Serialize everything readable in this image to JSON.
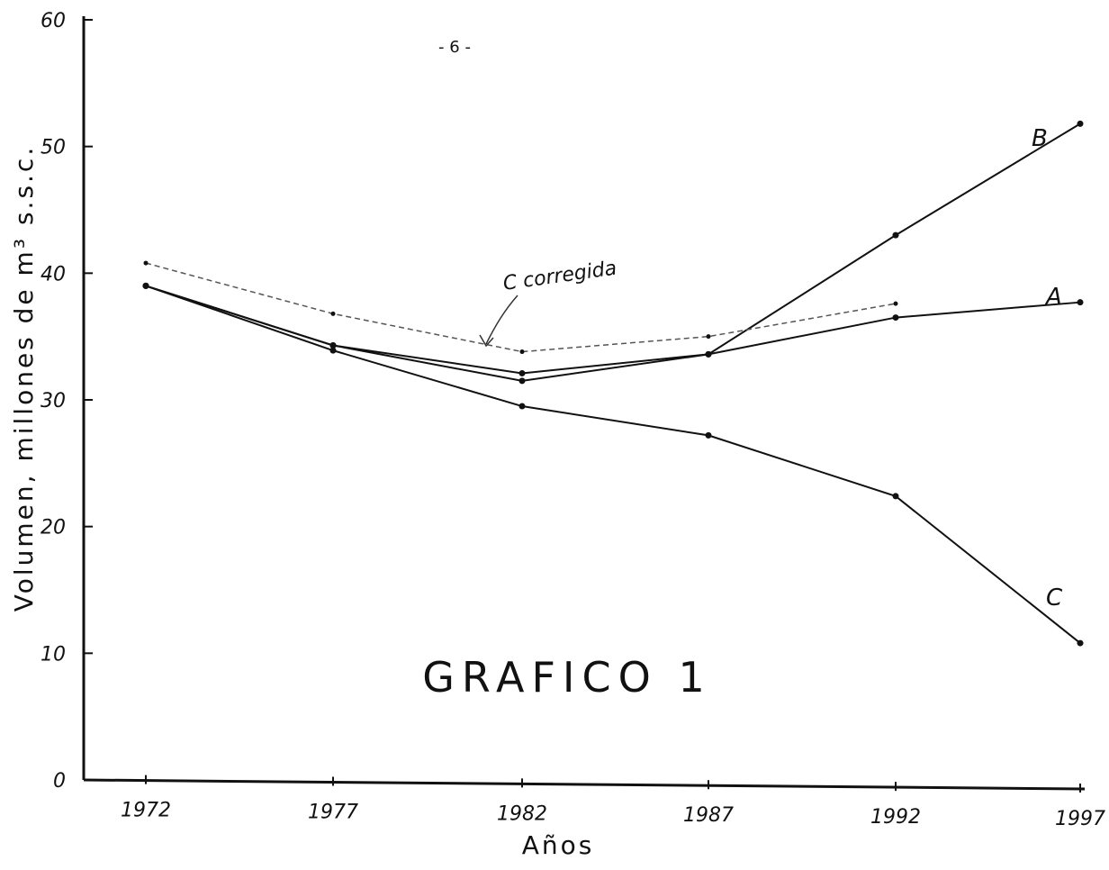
{
  "page": {
    "page_number": "- 6 -"
  },
  "chart_data": {
    "type": "line",
    "title": "GRAFICO 1",
    "xlabel": "Años",
    "ylabel": "Volumen, millones de m³ s.s.c.",
    "categories": [
      "1972",
      "1977",
      "1982",
      "1987",
      "1992",
      "1997"
    ],
    "x": [
      1972,
      1977,
      1982,
      1987,
      1992,
      1997
    ],
    "yticks": [
      "0",
      "10",
      "20",
      "30",
      "40",
      "50",
      "60"
    ],
    "ylim": [
      0,
      60
    ],
    "grid": false,
    "annotation": "C corregida",
    "series": [
      {
        "name": "A",
        "values": [
          39,
          34.3,
          31.5,
          33.6,
          36.5,
          37.7
        ]
      },
      {
        "name": "B",
        "values": [
          39,
          34.3,
          32.1,
          33.6,
          43,
          51.8
        ]
      },
      {
        "name": "C",
        "values": [
          39,
          33.9,
          29.5,
          27.2,
          22.4,
          10.8
        ]
      },
      {
        "name": "C corregida",
        "values": [
          40.8,
          36.8,
          33.8,
          35,
          37.6,
          null
        ],
        "dashed": true
      }
    ],
    "colors": {
      "line": "#111111",
      "dashed": "#555555"
    }
  }
}
